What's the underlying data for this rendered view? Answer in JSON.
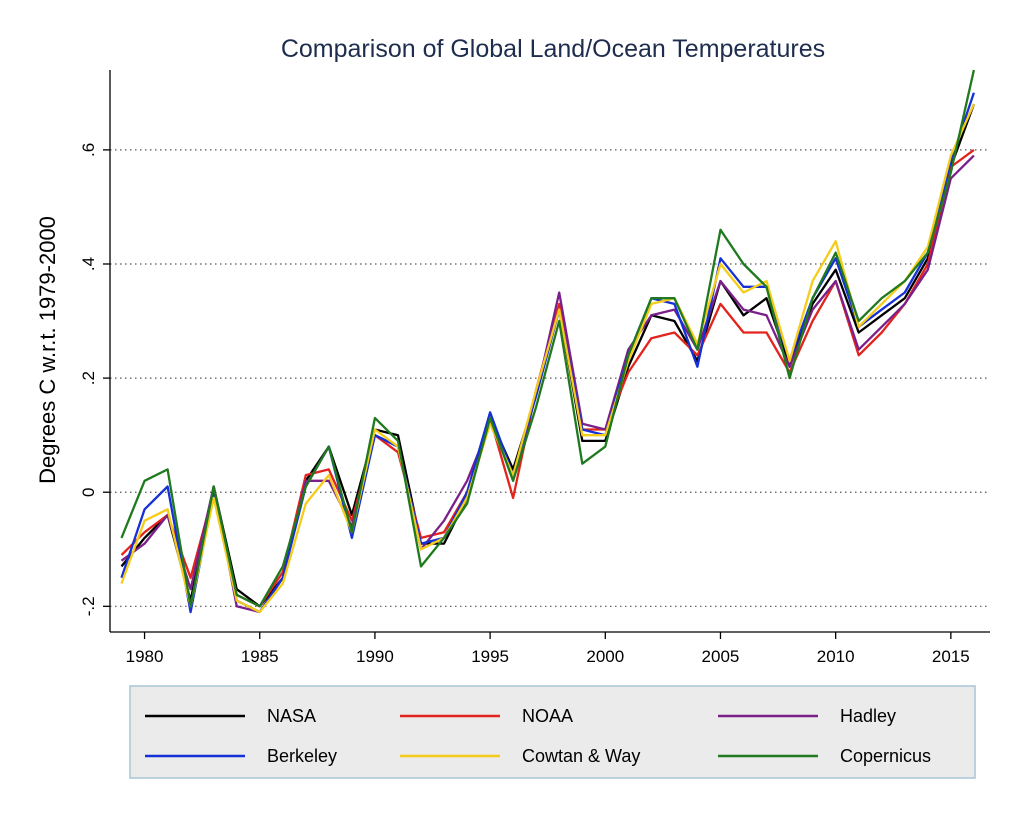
{
  "chart_data": {
    "type": "line",
    "title": "Comparison of Global Land/Ocean Temperatures",
    "xlabel": "",
    "ylabel": "Degrees C w.r.t. 1979-2000",
    "xlim": [
      1978.5,
      2016.7
    ],
    "ylim": [
      -0.245,
      0.74
    ],
    "x_ticks": [
      1980,
      1985,
      1990,
      1995,
      2000,
      2005,
      2010,
      2015
    ],
    "y_ticks": [
      -0.2,
      0,
      0.2,
      0.4,
      0.6
    ],
    "y_tick_labels": [
      "-.2",
      "0",
      ".2",
      ".4",
      ".6"
    ],
    "grid": "dotted horizontal lines at y ticks",
    "legend_position": "bottom",
    "x": [
      1979,
      1980,
      1981,
      1982,
      1983,
      1984,
      1985,
      1986,
      1987,
      1988,
      1989,
      1990,
      1991,
      1992,
      1993,
      1994,
      1995,
      1996,
      1997,
      1998,
      1999,
      2000,
      2001,
      2002,
      2003,
      2004,
      2005,
      2006,
      2007,
      2008,
      2009,
      2010,
      2011,
      2012,
      2013,
      2014,
      2015,
      2016
    ],
    "series": [
      {
        "name": "NASA",
        "color": "#000000",
        "values": [
          -0.13,
          -0.08,
          -0.04,
          -0.19,
          0.01,
          -0.17,
          -0.2,
          -0.15,
          0.02,
          0.08,
          -0.04,
          0.11,
          0.1,
          -0.09,
          -0.09,
          -0.01,
          0.13,
          0.04,
          0.17,
          0.32,
          0.09,
          0.09,
          0.22,
          0.31,
          0.3,
          0.23,
          0.37,
          0.31,
          0.34,
          0.22,
          0.33,
          0.39,
          0.28,
          0.31,
          0.34,
          0.41,
          0.57,
          0.68
        ]
      },
      {
        "name": "NOAA",
        "color": "#e3241d",
        "values": [
          -0.11,
          -0.07,
          -0.04,
          -0.15,
          0.0,
          -0.18,
          -0.2,
          -0.14,
          0.03,
          0.04,
          -0.05,
          0.1,
          0.07,
          -0.08,
          -0.07,
          0.0,
          0.13,
          -0.01,
          0.18,
          0.33,
          0.11,
          0.11,
          0.21,
          0.27,
          0.28,
          0.24,
          0.33,
          0.28,
          0.28,
          0.21,
          0.3,
          0.37,
          0.24,
          0.28,
          0.33,
          0.4,
          0.57,
          0.6
        ]
      },
      {
        "name": "Hadley",
        "color": "#7b1f8a",
        "values": [
          -0.12,
          -0.09,
          -0.04,
          -0.17,
          0.01,
          -0.2,
          -0.21,
          -0.15,
          0.02,
          0.02,
          -0.06,
          0.1,
          0.08,
          -0.1,
          -0.05,
          0.02,
          0.12,
          0.03,
          0.17,
          0.35,
          0.12,
          0.11,
          0.25,
          0.31,
          0.32,
          0.25,
          0.37,
          0.32,
          0.31,
          0.22,
          0.32,
          0.37,
          0.25,
          0.29,
          0.33,
          0.39,
          0.55,
          0.59
        ]
      },
      {
        "name": "Berkeley",
        "color": "#1530d6",
        "values": [
          -0.15,
          -0.03,
          0.01,
          -0.21,
          0.0,
          -0.19,
          -0.21,
          -0.15,
          0.01,
          0.08,
          -0.08,
          0.1,
          0.08,
          -0.09,
          -0.08,
          0.0,
          0.14,
          0.03,
          0.17,
          0.32,
          0.11,
          0.1,
          0.24,
          0.34,
          0.33,
          0.22,
          0.41,
          0.36,
          0.36,
          0.23,
          0.34,
          0.41,
          0.29,
          0.32,
          0.35,
          0.42,
          0.58,
          0.7
        ]
      },
      {
        "name": "Cowtan & Way",
        "color": "#f5cc1a",
        "values": [
          -0.16,
          -0.05,
          -0.03,
          -0.2,
          -0.01,
          -0.19,
          -0.21,
          -0.16,
          -0.02,
          0.03,
          -0.07,
          0.11,
          0.08,
          -0.1,
          -0.08,
          -0.01,
          0.12,
          0.03,
          0.18,
          0.32,
          0.1,
          0.1,
          0.23,
          0.33,
          0.34,
          0.26,
          0.4,
          0.35,
          0.37,
          0.23,
          0.37,
          0.44,
          0.29,
          0.33,
          0.37,
          0.43,
          0.59,
          0.68
        ]
      },
      {
        "name": "Copernicus",
        "color": "#1f7a1f",
        "values": [
          -0.08,
          0.02,
          0.04,
          -0.2,
          0.01,
          -0.18,
          -0.2,
          -0.13,
          0.01,
          0.08,
          -0.07,
          0.13,
          0.09,
          -0.13,
          -0.08,
          -0.02,
          0.13,
          0.02,
          0.15,
          0.3,
          0.05,
          0.08,
          0.24,
          0.34,
          0.34,
          0.25,
          0.46,
          0.4,
          0.36,
          0.2,
          0.34,
          0.42,
          0.3,
          0.34,
          0.37,
          0.42,
          0.56,
          0.74
        ]
      }
    ]
  },
  "colors": {
    "title": "#1e2d4d",
    "legend_background": "#ebebeb",
    "legend_border": "#a9c4d6",
    "grid": "#555555"
  }
}
